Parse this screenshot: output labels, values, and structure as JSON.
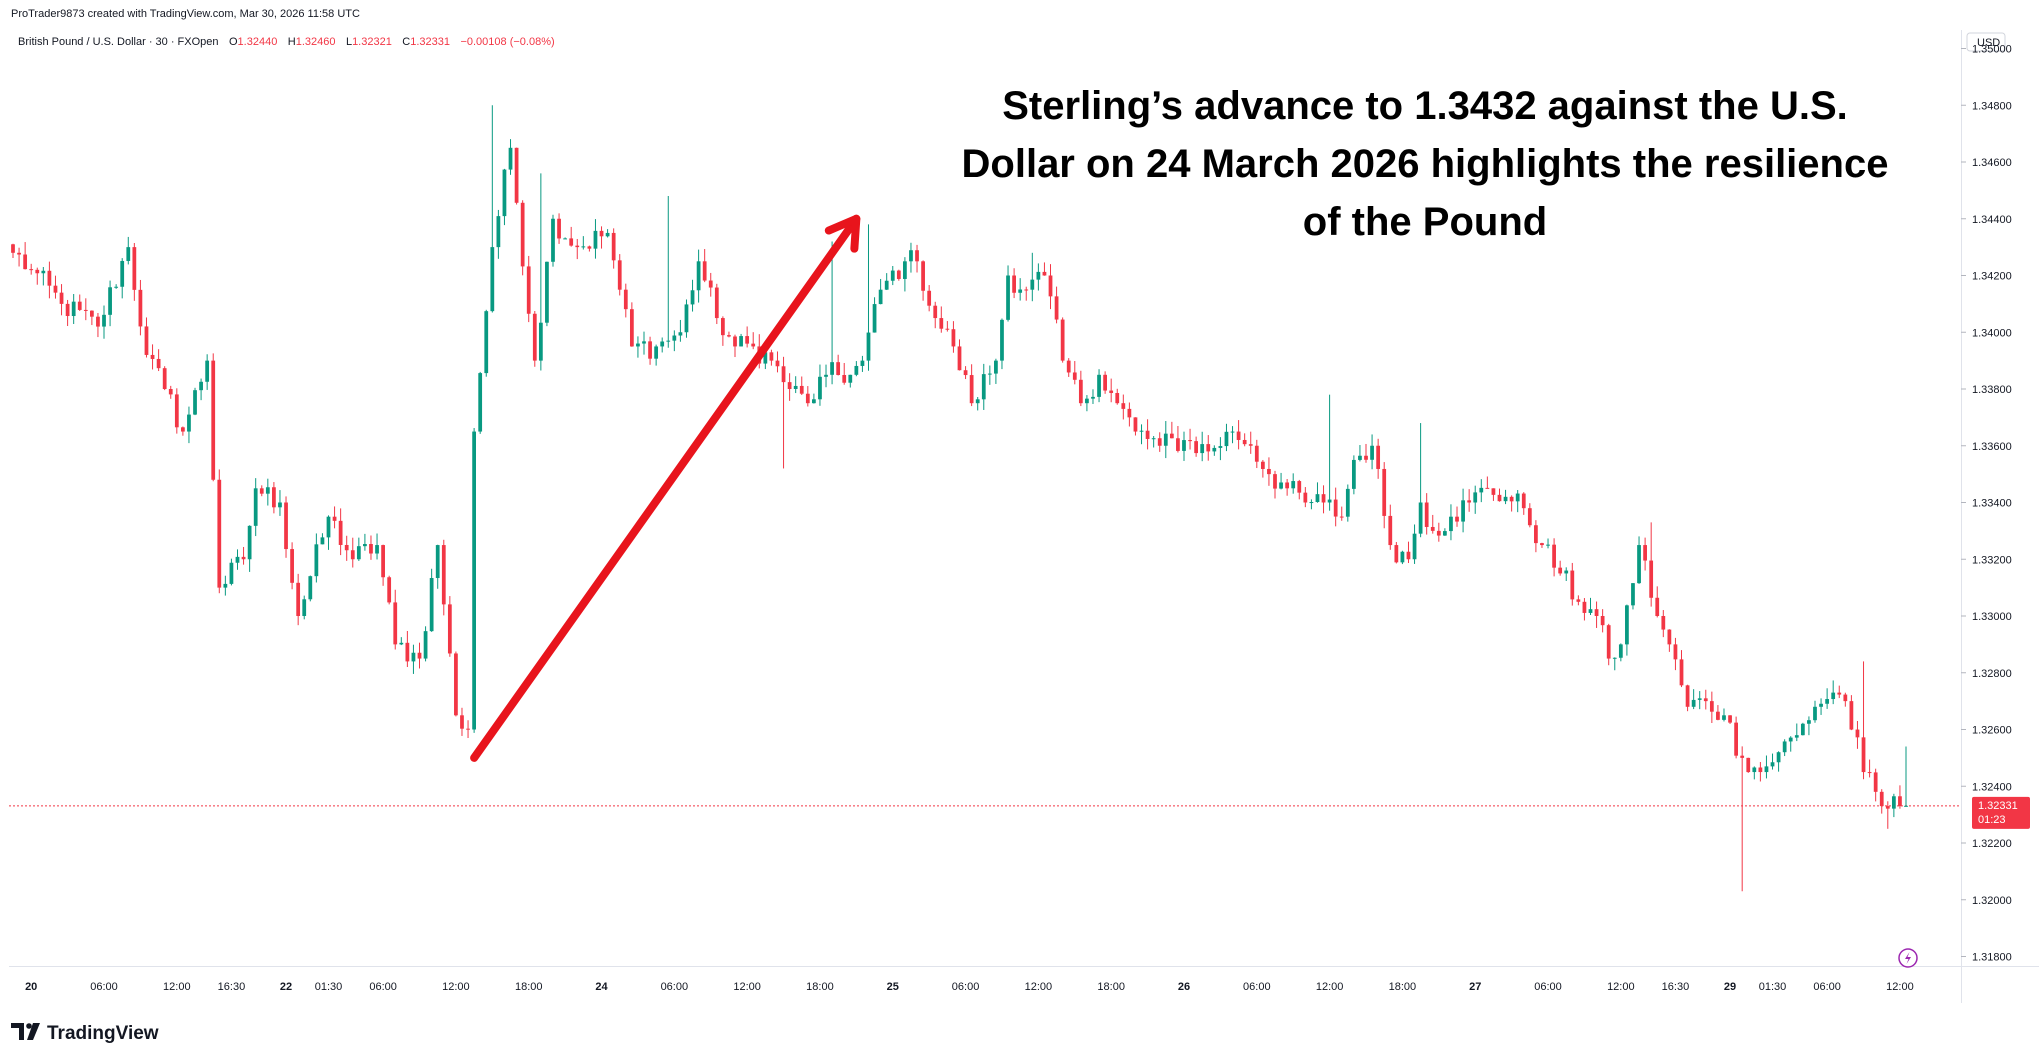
{
  "header": {
    "creator_line": "ProTrader9873 created with TradingView.com, Mar 30, 2026 11:58 UTC",
    "symbol": "British Pound / U.S. Dollar · 30 · FXOpen",
    "ohlc": {
      "o_label": "O",
      "o_value": "1.32440",
      "h_label": "H",
      "h_value": "1.32460",
      "l_label": "L",
      "l_value": "1.32321",
      "c_label": "C",
      "c_value": "1.32331",
      "change": "−0.00108 (−0.08%)"
    }
  },
  "currency_label": "USD",
  "annotation": {
    "lines": [
      "Sterling’s advance to 1.3432 against the U.S.",
      "Dollar on 24 March 2026 highlights the resilience",
      "of the Pound"
    ]
  },
  "price_tag": {
    "price": "1.32331",
    "countdown": "01:23"
  },
  "branding": {
    "logo_text": "TradingView"
  },
  "colors": {
    "up": "#089981",
    "down": "#f23645",
    "arrow": "#e8141c",
    "price_line": "#f23645",
    "axis_line": "#e0e3eb",
    "text": "#131722",
    "bolt": "#9c27b0"
  },
  "chart_data": {
    "type": "candlestick",
    "title": "",
    "y_ticks": [
      "1.35000",
      "1.34800",
      "1.34600",
      "1.34400",
      "1.34200",
      "1.34000",
      "1.33800",
      "1.33600",
      "1.33400",
      "1.33200",
      "1.33000",
      "1.32800",
      "1.32600",
      "1.32400",
      "1.32200",
      "1.32000",
      "1.31800"
    ],
    "ylim": [
      1.3172,
      1.351
    ],
    "x_ticks": [
      {
        "label": "20",
        "bold": true,
        "bar": 3
      },
      {
        "label": "06:00",
        "bold": false,
        "bar": 15
      },
      {
        "label": "12:00",
        "bold": false,
        "bar": 27
      },
      {
        "label": "16:30",
        "bold": false,
        "bar": 36
      },
      {
        "label": "22",
        "bold": true,
        "bar": 45
      },
      {
        "label": "01:30",
        "bold": false,
        "bar": 52
      },
      {
        "label": "06:00",
        "bold": false,
        "bar": 61
      },
      {
        "label": "12:00",
        "bold": false,
        "bar": 73
      },
      {
        "label": "18:00",
        "bold": false,
        "bar": 85
      },
      {
        "label": "24",
        "bold": true,
        "bar": 97
      },
      {
        "label": "06:00",
        "bold": false,
        "bar": 109
      },
      {
        "label": "12:00",
        "bold": false,
        "bar": 121
      },
      {
        "label": "18:00",
        "bold": false,
        "bar": 133
      },
      {
        "label": "25",
        "bold": true,
        "bar": 145
      },
      {
        "label": "06:00",
        "bold": false,
        "bar": 157
      },
      {
        "label": "12:00",
        "bold": false,
        "bar": 169
      },
      {
        "label": "18:00",
        "bold": false,
        "bar": 181
      },
      {
        "label": "26",
        "bold": true,
        "bar": 193
      },
      {
        "label": "06:00",
        "bold": false,
        "bar": 205
      },
      {
        "label": "12:00",
        "bold": false,
        "bar": 217
      },
      {
        "label": "18:00",
        "bold": false,
        "bar": 229
      },
      {
        "label": "27",
        "bold": true,
        "bar": 241
      },
      {
        "label": "06:00",
        "bold": false,
        "bar": 253
      },
      {
        "label": "12:00",
        "bold": false,
        "bar": 265
      },
      {
        "label": "16:30",
        "bold": false,
        "bar": 274
      },
      {
        "label": "29",
        "bold": true,
        "bar": 283
      },
      {
        "label": "01:30",
        "bold": false,
        "bar": 290
      },
      {
        "label": "06:00",
        "bold": false,
        "bar": 299
      },
      {
        "label": "12:00",
        "bold": false,
        "bar": 311
      }
    ],
    "last_close": 1.32331,
    "annotated_level": 1.3432,
    "arrow": {
      "from": {
        "bar": 76,
        "price": 1.325
      },
      "to": {
        "bar": 139,
        "price": 1.344
      }
    },
    "close_anchors": [
      [
        0,
        1.3428
      ],
      [
        3,
        1.3422
      ],
      [
        8,
        1.341
      ],
      [
        14,
        1.3402
      ],
      [
        19,
        1.343
      ],
      [
        22,
        1.3392
      ],
      [
        25,
        1.338
      ],
      [
        28,
        1.3365
      ],
      [
        32,
        1.339
      ],
      [
        34,
        1.331
      ],
      [
        38,
        1.332
      ],
      [
        40,
        1.3345
      ],
      [
        44,
        1.334
      ],
      [
        47,
        1.33
      ],
      [
        52,
        1.3335
      ],
      [
        56,
        1.332
      ],
      [
        60,
        1.3325
      ],
      [
        63,
        1.329
      ],
      [
        67,
        1.3285
      ],
      [
        70,
        1.3325
      ],
      [
        73,
        1.3265
      ],
      [
        75,
        1.326
      ],
      [
        76,
        1.3365
      ],
      [
        79,
        1.343
      ],
      [
        82,
        1.3465
      ],
      [
        86,
        1.339
      ],
      [
        89,
        1.344
      ],
      [
        93,
        1.343
      ],
      [
        98,
        1.3435
      ],
      [
        100,
        1.3415
      ],
      [
        102,
        1.3395
      ],
      [
        106,
        1.3395
      ],
      [
        110,
        1.34
      ],
      [
        113,
        1.3425
      ],
      [
        116,
        1.3405
      ],
      [
        119,
        1.3395
      ],
      [
        122,
        1.3395
      ],
      [
        125,
        1.339
      ],
      [
        128,
        1.338
      ],
      [
        131,
        1.3375
      ],
      [
        134,
        1.3385
      ],
      [
        138,
        1.3385
      ],
      [
        140,
        1.339
      ],
      [
        143,
        1.3415
      ],
      [
        147,
        1.3425
      ],
      [
        149,
        1.3425
      ],
      [
        152,
        1.3405
      ],
      [
        155,
        1.3395
      ],
      [
        158,
        1.3375
      ],
      [
        162,
        1.339
      ],
      [
        164,
        1.342
      ],
      [
        167,
        1.3415
      ],
      [
        170,
        1.342
      ],
      [
        173,
        1.339
      ],
      [
        176,
        1.3375
      ],
      [
        179,
        1.3385
      ],
      [
        182,
        1.3375
      ],
      [
        185,
        1.3365
      ],
      [
        189,
        1.336
      ],
      [
        193,
        1.3362
      ],
      [
        197,
        1.3358
      ],
      [
        201,
        1.3365
      ],
      [
        204,
        1.336
      ],
      [
        207,
        1.335
      ],
      [
        210,
        1.3345
      ],
      [
        213,
        1.334
      ],
      [
        216,
        1.334
      ],
      [
        219,
        1.3335
      ],
      [
        221,
        1.3355
      ],
      [
        224,
        1.336
      ],
      [
        227,
        1.3325
      ],
      [
        230,
        1.332
      ],
      [
        232,
        1.334
      ],
      [
        234,
        1.333
      ],
      [
        237,
        1.3335
      ],
      [
        240,
        1.334
      ],
      [
        243,
        1.3345
      ],
      [
        246,
        1.3342
      ],
      [
        249,
        1.3338
      ],
      [
        252,
        1.3325
      ],
      [
        255,
        1.3315
      ],
      [
        258,
        1.3305
      ],
      [
        261,
        1.33
      ],
      [
        263,
        1.3285
      ],
      [
        265,
        1.329
      ],
      [
        268,
        1.3325
      ],
      [
        271,
        1.33
      ],
      [
        273,
        1.329
      ],
      [
        276,
        1.3268
      ],
      [
        279,
        1.327
      ],
      [
        282,
        1.3265
      ],
      [
        285,
        1.325
      ],
      [
        288,
        1.3245
      ],
      [
        291,
        1.3252
      ],
      [
        294,
        1.3258
      ],
      [
        297,
        1.3268
      ],
      [
        300,
        1.3273
      ],
      [
        302,
        1.327
      ],
      [
        305,
        1.3245
      ],
      [
        308,
        1.3233
      ],
      [
        311,
        1.3233
      ]
    ],
    "spikes": [
      {
        "bar": 79,
        "high": 1.348
      },
      {
        "bar": 75,
        "low": 1.3257
      },
      {
        "bar": 87,
        "high": 1.3456
      },
      {
        "bar": 108,
        "high": 1.3448
      },
      {
        "bar": 127,
        "low": 1.3352
      },
      {
        "bar": 135,
        "high": 1.3432
      },
      {
        "bar": 141,
        "high": 1.3438
      },
      {
        "bar": 168,
        "high": 1.3428
      },
      {
        "bar": 217,
        "high": 1.3378
      },
      {
        "bar": 232,
        "high": 1.3368
      },
      {
        "bar": 285,
        "low": 1.3203
      },
      {
        "bar": 270,
        "high": 1.3333
      },
      {
        "bar": 305,
        "high": 1.3284
      },
      {
        "bar": 312,
        "high": 1.3254
      },
      {
        "bar": 309,
        "low": 1.3225
      }
    ],
    "n_bars": 313
  }
}
